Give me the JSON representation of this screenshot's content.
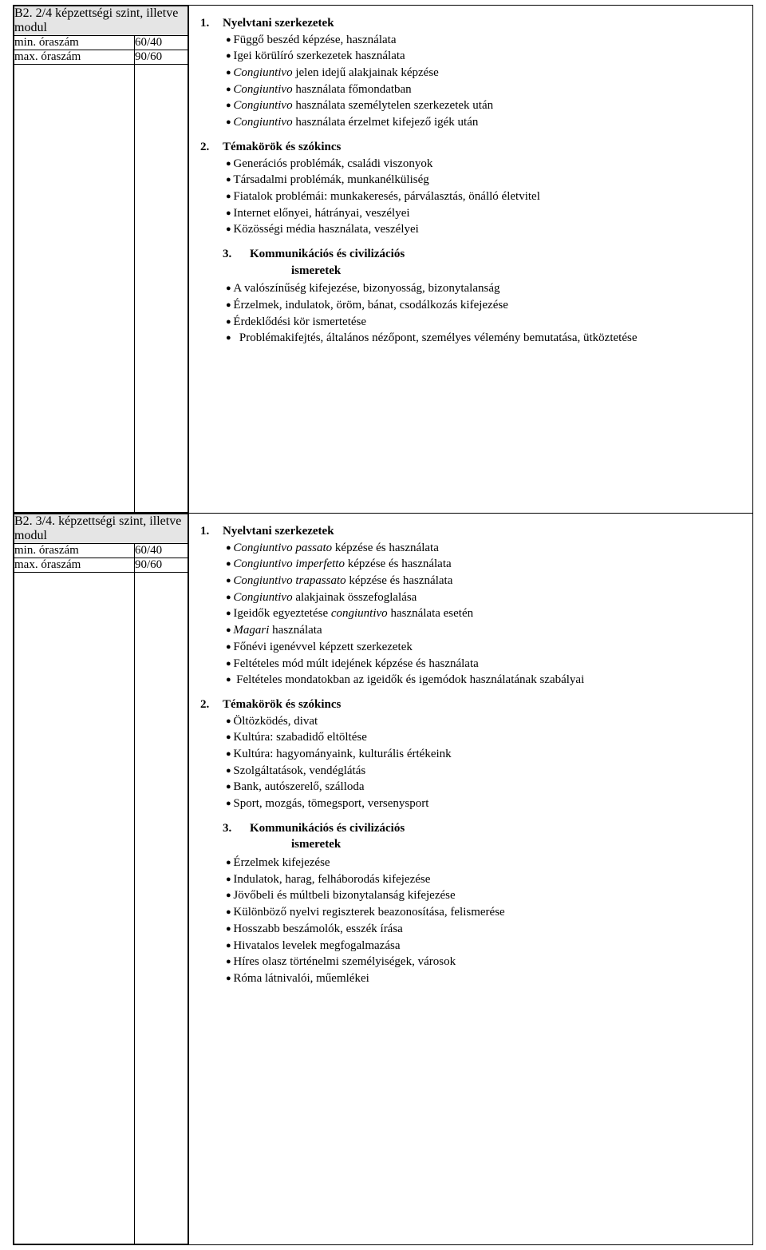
{
  "modules": [
    {
      "header": "B2. 2/4 képzettségi szint, illetve modul",
      "min_label": "min. óraszám",
      "min_val": "60/40",
      "max_label": "max. óraszám",
      "max_val": "90/60",
      "sec1_num": "1.",
      "sec1_title": "Nyelvtani szerkezetek",
      "sec1_items": [
        [
          [
            "Függő beszéd képzése, használata"
          ]
        ],
        [
          [
            "Igei körülíró szerkezetek használata"
          ]
        ],
        [
          [
            "i",
            "Congiuntivo"
          ],
          [
            " jelen idejű alakjainak képzése"
          ]
        ],
        [
          [
            "i",
            "Congiuntivo"
          ],
          [
            " használata főmondatban"
          ]
        ],
        [
          [
            "i",
            "Congiuntivo"
          ],
          [
            " használata személytelen szerkezetek után"
          ]
        ],
        [
          [
            "i",
            "Congiuntivo"
          ],
          [
            " használata érzelmet kifejező igék után"
          ]
        ]
      ],
      "sec2_num": "2.",
      "sec2_title": "Témakörök és szókincs",
      "sec2_items": [
        [
          [
            "Generációs problémák, családi viszonyok"
          ]
        ],
        [
          [
            "Társadalmi problémák, munkanélküliség"
          ]
        ],
        [
          [
            "Fiatalok problémái: munkakeresés, párválasztás, önálló életvitel"
          ]
        ],
        [
          [
            "Internet előnyei, hátrányai, veszélyei"
          ]
        ],
        [
          [
            "Közösségi média használata, veszélyei"
          ]
        ]
      ],
      "sec3_num": "3.",
      "sec3_title_a": "Kommunikációs és civilizációs",
      "sec3_title_b": "ismeretek",
      "sec3_items": [
        [
          [
            "A valószínűség kifejezése, bizonyosság, bizonytalanság"
          ]
        ],
        [
          [
            "Érzelmek, indulatok, öröm, bánat, csodálkozás kifejezése"
          ]
        ],
        [
          [
            "Érdeklődési kör ismertetése"
          ]
        ],
        [
          [
            "  Problémakifejtés, általános nézőpont, személyes vélemény bemutatása, ütköztetése"
          ]
        ]
      ]
    },
    {
      "header": "B2. 3/4. képzettségi szint, illetve modul",
      "min_label": "min. óraszám",
      "min_val": "60/40",
      "max_label": "max. óraszám",
      "max_val": "90/60",
      "sec1_num": "1.",
      "sec1_title": "Nyelvtani szerkezetek",
      "sec1_items": [
        [
          [
            "i",
            "Congiuntivo passato"
          ],
          [
            " képzése és használata"
          ]
        ],
        [
          [
            "i",
            "Congiuntivo imperfetto"
          ],
          [
            " képzése és használata"
          ]
        ],
        [
          [
            "i",
            "Congiuntivo trapassato"
          ],
          [
            " képzése és használata"
          ]
        ],
        [
          [
            "i",
            "Congiuntivo"
          ],
          [
            " alakjainak összefoglalása"
          ]
        ],
        [
          [
            "Igeidők egyeztetése "
          ],
          [
            "i",
            "congiuntivo"
          ],
          [
            " használata esetén"
          ]
        ],
        [
          [
            "i",
            "Magari"
          ],
          [
            " használata"
          ]
        ],
        [
          [
            "Főnévi igenévvel képzett szerkezetek"
          ]
        ],
        [
          [
            "Feltételes mód múlt idejének képzése és használata"
          ]
        ],
        [
          [
            " Feltételes mondatokban az igeidők és igemódok használatának szabályai"
          ]
        ]
      ],
      "sec2_num": "2.",
      "sec2_title": "Témakörök és szókincs",
      "sec2_items": [
        [
          [
            "Öltözködés, divat"
          ]
        ],
        [
          [
            "Kultúra: szabadidő eltöltése"
          ]
        ],
        [
          [
            "Kultúra: hagyományaink, kulturális értékeink"
          ]
        ],
        [
          [
            "Szolgáltatások,  vendéglátás"
          ]
        ],
        [
          [
            "Bank, autószerelő, szálloda"
          ]
        ],
        [
          [
            "Sport, mozgás, tömegsport, versenysport"
          ]
        ]
      ],
      "sec3_num": "3.",
      "sec3_title_a": "Kommunikációs és civilizációs",
      "sec3_title_b": "ismeretek",
      "sec3_items": [
        [
          [
            "Érzelmek kifejezése"
          ]
        ],
        [
          [
            "Indulatok, harag, felháborodás kifejezése"
          ]
        ],
        [
          [
            "Jövőbeli és múltbeli bizonytalanság kifejezése"
          ]
        ],
        [
          [
            "Különböző nyelvi regiszterek beazonosítása, felismerése"
          ]
        ],
        [
          [
            "Hosszabb beszámolók, esszék írása"
          ]
        ],
        [
          [
            "Hivatalos levelek megfogalmazása"
          ]
        ],
        [
          [
            "Híres olasz történelmi személyiségek, városok"
          ]
        ],
        [
          [
            "Róma látnivalói, műemlékei"
          ]
        ]
      ]
    }
  ]
}
